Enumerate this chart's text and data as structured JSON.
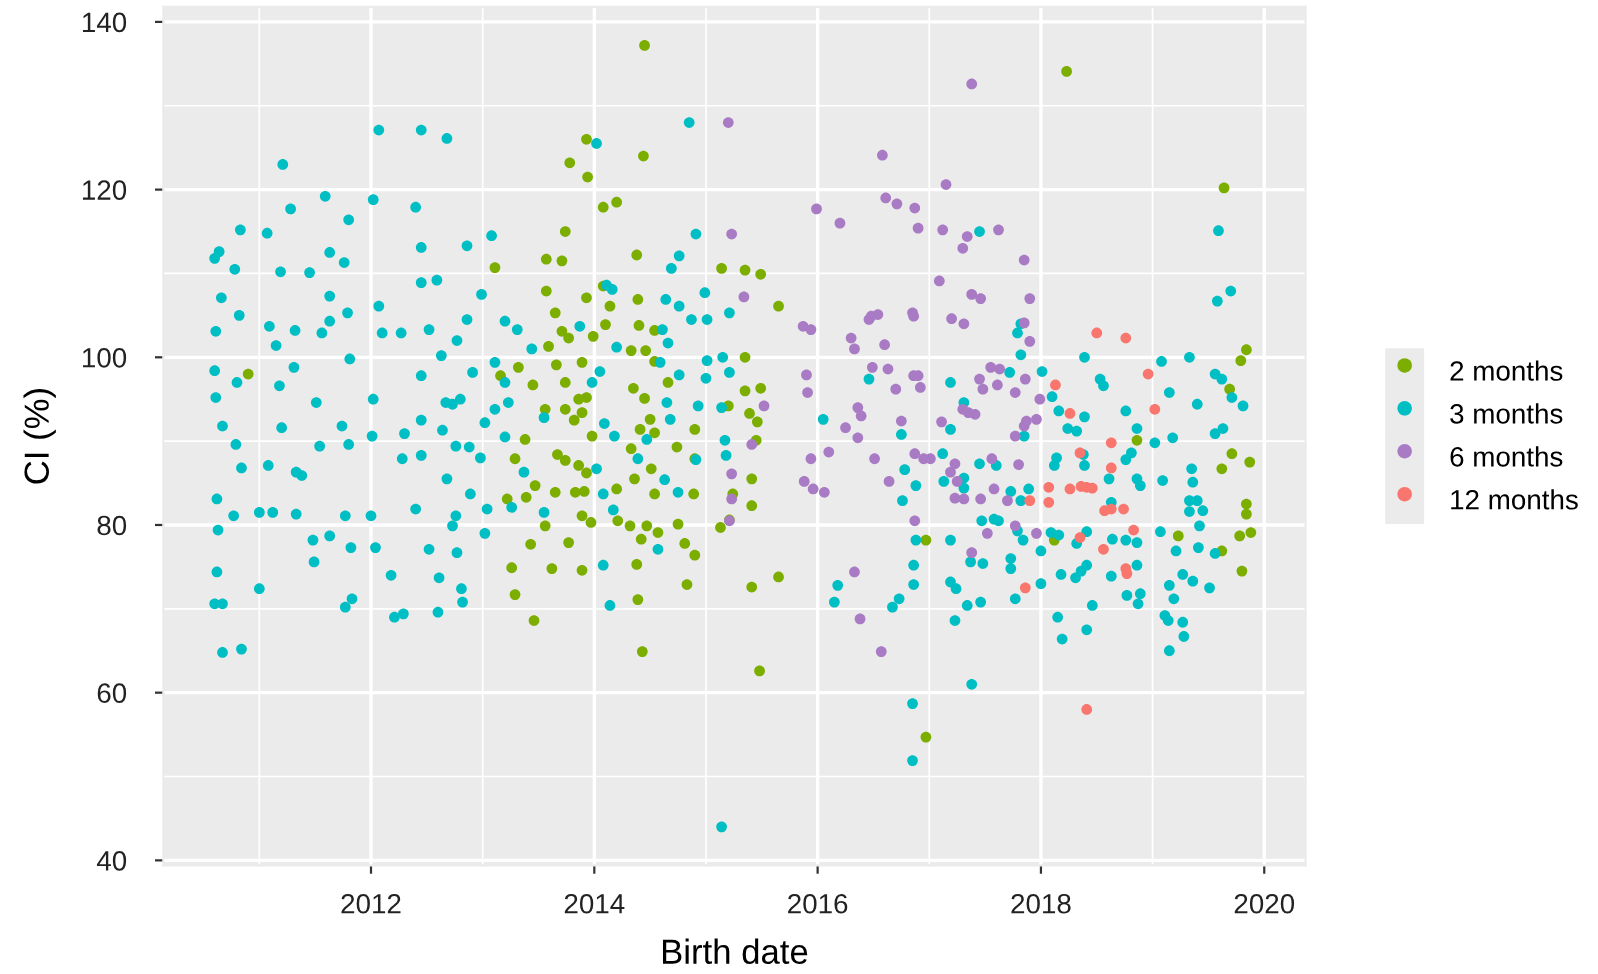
{
  "chart_data": {
    "type": "scatter",
    "xlabel": "Birth date",
    "ylabel": "CI (%)",
    "xlim": [
      2010.14,
      2020.37
    ],
    "xticks": [
      2012,
      2014,
      2016,
      2018,
      2020
    ],
    "ylim": [
      39.4,
      141.8
    ],
    "yticks": [
      40,
      60,
      80,
      100,
      120,
      140
    ],
    "grid": true,
    "legend": "right",
    "marker": "circle",
    "series": [
      {
        "name": "2 months",
        "color": "#7cae00",
        "x": [
          2010.9,
          2014.45,
          2013.93,
          2014.44,
          2013.78,
          2013.94,
          2014.08,
          2014.2,
          2013.74,
          2013.57,
          2013.71,
          2013.11,
          2014.38,
          2015.14,
          2015.35,
          2015.49,
          2015.65,
          2013.57,
          2014.08,
          2013.93,
          2013.65,
          2014.39,
          2014.14,
          2013.71,
          2013.77,
          2013.59,
          2013.99,
          2014.1,
          2014.4,
          2014.54,
          2013.32,
          2013.16,
          2013.45,
          2013.66,
          2013.89,
          2013.74,
          2014.33,
          2014.46,
          2014.54,
          2014.35,
          2014.45,
          2014.66,
          2015.35,
          2015.35,
          2015.49,
          2015.39,
          2015.2,
          2013.56,
          2013.74,
          2013.86,
          2013.93,
          2013.98,
          2013.82,
          2013.89,
          2013.38,
          2013.67,
          2013.74,
          2013.86,
          2013.93,
          2013.83,
          2013.91,
          2013.29,
          2013.22,
          2013.39,
          2013.47,
          2013.56,
          2013.65,
          2013.89,
          2013.97,
          2014.2,
          2014.21,
          2014.33,
          2014.41,
          2014.5,
          2014.54,
          2014.36,
          2014.51,
          2014.54,
          2014.47,
          2014.32,
          2014.75,
          2014.74,
          2014.9,
          2014.9,
          2014.89,
          2014.57,
          2014.42,
          2013.26,
          2013.43,
          2013.29,
          2013.46,
          2013.62,
          2013.89,
          2013.77,
          2014.38,
          2014.39,
          2014.81,
          2014.9,
          2014.83,
          2015.13,
          2015.21,
          2015.24,
          2015.41,
          2015.41,
          2015.45,
          2015.46,
          2015.41,
          2015.65,
          2014.43,
          2015.48,
          2018.23,
          2019.64,
          2019.84,
          2019.79,
          2019.69,
          2019.71,
          2019.87,
          2019.62,
          2019.84,
          2019.84,
          2019.78,
          2019.88,
          2019.62,
          2019.8,
          2018.86,
          2019.23,
          2016.97,
          2016.97,
          2018.12
        ],
        "values": [
          98.0,
          137.2,
          126.0,
          124.0,
          123.2,
          121.5,
          117.9,
          118.5,
          115.0,
          111.7,
          111.5,
          110.7,
          112.2,
          110.6,
          110.4,
          109.9,
          106.1,
          107.9,
          108.5,
          107.1,
          105.3,
          106.9,
          106.1,
          103.1,
          102.3,
          101.3,
          102.5,
          103.9,
          103.8,
          103.2,
          98.8,
          97.8,
          96.7,
          99.1,
          99.4,
          97.0,
          100.8,
          100.8,
          99.5,
          96.3,
          95.1,
          97.0,
          100.0,
          96.0,
          96.3,
          93.3,
          94.2,
          93.8,
          93.8,
          95.0,
          95.2,
          90.6,
          92.5,
          93.4,
          90.2,
          88.4,
          87.7,
          87.1,
          86.2,
          83.9,
          84.0,
          87.9,
          83.1,
          83.3,
          84.7,
          79.9,
          83.9,
          81.1,
          80.3,
          84.3,
          80.5,
          89.1,
          91.4,
          92.6,
          91.0,
          85.5,
          86.7,
          83.7,
          79.9,
          79.9,
          80.1,
          89.3,
          91.4,
          87.9,
          83.7,
          79.1,
          78.3,
          74.9,
          77.7,
          71.7,
          68.6,
          74.8,
          74.6,
          77.9,
          75.3,
          71.1,
          77.8,
          76.4,
          72.9,
          79.7,
          80.6,
          83.7,
          85.5,
          82.3,
          90.1,
          92.3,
          72.6,
          73.8,
          64.9,
          62.6,
          134.1,
          120.2,
          100.9,
          99.6,
          96.2,
          88.5,
          87.5,
          86.7,
          82.5,
          81.3,
          78.7,
          79.1,
          76.9,
          74.5,
          90.1,
          78.7,
          78.2,
          54.7,
          78.2
        ]
      },
      {
        "name": "3 months",
        "color": "#00bfc4",
        "x": [
          2010.6,
          2010.64,
          2010.61,
          2010.66,
          2010.6,
          2010.61,
          2010.67,
          2010.62,
          2010.63,
          2010.62,
          2010.6,
          2010.67,
          2010.67,
          2010.84,
          2010.78,
          2010.83,
          2010.8,
          2010.82,
          2010.79,
          2010.84,
          2010.77,
          2011.0,
          2011.07,
          2011.21,
          2011.28,
          2011.09,
          2011.15,
          2011.19,
          2011.18,
          2011.0,
          2011.12,
          2011.08,
          2011.2,
          2011.32,
          2011.31,
          2011.33,
          2011.38,
          2011.33,
          2011.48,
          2011.49,
          2011.45,
          2011.59,
          2011.63,
          2011.63,
          2011.56,
          2011.63,
          2011.51,
          2011.54,
          2011.63,
          2011.76,
          2011.8,
          2011.79,
          2011.81,
          2011.74,
          2011.8,
          2011.77,
          2011.77,
          2011.83,
          2011.82,
          2012.02,
          2012.07,
          2012.07,
          2012.1,
          2012.02,
          2012.01,
          2012.0,
          2012.04,
          2012.18,
          2012.21,
          2012.29,
          2012.3,
          2012.28,
          2012.27,
          2012.4,
          2012.45,
          2012.45,
          2012.45,
          2012.52,
          2012.45,
          2012.45,
          2012.45,
          2012.4,
          2012.52,
          2012.6,
          2012.61,
          2012.68,
          2012.59,
          2012.63,
          2012.67,
          2012.64,
          2012.68,
          2012.76,
          2012.81,
          2012.82,
          2012.86,
          2012.86,
          2012.77,
          2012.8,
          2012.76,
          2012.89,
          2013.08,
          2012.99,
          2013.2,
          2013.31,
          2013.11,
          2013.44,
          2013.2,
          2012.91,
          2012.73,
          2013.11,
          2013.23,
          2013.02,
          2012.88,
          2013.2,
          2013.37,
          2012.98,
          2013.04,
          2013.26,
          2012.73,
          2013.02,
          2012.77,
          2013.55,
          2013.55,
          2013.98,
          2013.87,
          2014.05,
          2014.02,
          2014.09,
          2014.08,
          2014.17,
          2014.18,
          2014.11,
          2014.16,
          2014.2,
          2014.14,
          2014.08,
          2014.02,
          2014.39,
          2014.47,
          2014.59,
          2014.64,
          2014.66,
          2014.61,
          2014.76,
          2014.76,
          2014.69,
          2014.91,
          2014.85,
          2014.68,
          2014.63,
          2014.57,
          2014.65,
          2014.76,
          2014.87,
          2014.99,
          2015.01,
          2015.01,
          2015.0,
          2014.93,
          2015.14,
          2015.17,
          2015.18,
          2015.15,
          2015.21,
          2015.21,
          2014.75,
          2014.91,
          2015.14,
          2016.05,
          2016.18,
          2016.15,
          2017.45,
          2019.59,
          2019.7,
          2019.58,
          2017.82,
          2017.79,
          2017.82,
          2017.72,
          2018.01,
          2018.39,
          2019.08,
          2019.33,
          2019.56,
          2019.62,
          2019.81,
          2019.71,
          2017.19,
          2016.46,
          2017.31,
          2019.15,
          2019.4,
          2018.76,
          2018.53,
          2018.56,
          2018.1,
          2018.16,
          2018.24,
          2018.32,
          2018.39,
          2018.86,
          2019.18,
          2019.02,
          2019.63,
          2016.75,
          2017.19,
          2017.12,
          2017.45,
          2017.85,
          2016.78,
          2016.88,
          2016.76,
          2017.13,
          2017.31,
          2017.31,
          2017.6,
          2017.73,
          2017.82,
          2017.89,
          2018.12,
          2018.14,
          2018.38,
          2018.39,
          2018.61,
          2018.63,
          2018.76,
          2018.81,
          2018.86,
          2018.89,
          2019.09,
          2019.35,
          2019.36,
          2019.33,
          2019.4,
          2019.45,
          2019.33,
          2019.42,
          2019.56,
          2017.47,
          2017.58,
          2017.62,
          2017.79,
          2017.84,
          2018.0,
          2018.09,
          2018.16,
          2018.32,
          2018.41,
          2018.64,
          2018.76,
          2018.86,
          2019.07,
          2019.21,
          2019.41,
          2019.56,
          2017.19,
          2016.88,
          2016.86,
          2016.86,
          2017.19,
          2017.24,
          2017.37,
          2017.48,
          2017.73,
          2017.77,
          2017.73,
          2018.0,
          2018.18,
          2018.31,
          2018.36,
          2018.41,
          2018.46,
          2018.63,
          2018.86,
          2018.77,
          2018.89,
          2018.87,
          2019.15,
          2019.19,
          2019.27,
          2019.36,
          2019.51,
          2019.11,
          2019.14,
          2019.27,
          2019.15,
          2019.28,
          2018.15,
          2018.41,
          2018.19,
          2016.73,
          2016.67,
          2017.23,
          2017.34,
          2017.46,
          2017.38,
          2016.85,
          2016.85
        ],
        "values": [
          111.8,
          112.6,
          103.1,
          107.1,
          98.4,
          95.2,
          91.8,
          83.1,
          79.4,
          74.4,
          70.6,
          70.6,
          64.8,
          65.2,
          110.5,
          115.2,
          97.0,
          105.0,
          89.6,
          86.8,
          81.1,
          72.4,
          114.8,
          123.0,
          117.7,
          103.7,
          101.4,
          110.2,
          96.6,
          81.5,
          81.5,
          87.1,
          91.6,
          103.2,
          98.8,
          86.3,
          85.9,
          81.3,
          78.2,
          75.6,
          110.1,
          119.2,
          112.5,
          107.3,
          102.9,
          104.3,
          94.6,
          89.4,
          78.7,
          111.3,
          116.4,
          105.3,
          99.8,
          91.8,
          89.6,
          81.1,
          70.2,
          71.2,
          77.3,
          118.8,
          127.1,
          106.1,
          102.9,
          95.0,
          90.6,
          81.1,
          77.3,
          74.0,
          69.0,
          69.4,
          90.9,
          87.9,
          102.9,
          117.9,
          127.1,
          113.1,
          108.9,
          103.3,
          97.8,
          92.5,
          88.3,
          81.9,
          77.1,
          69.6,
          73.7,
          126.1,
          109.2,
          100.2,
          94.6,
          91.3,
          85.5,
          81.1,
          72.4,
          70.8,
          113.3,
          104.5,
          102.0,
          95.0,
          89.4,
          83.7,
          114.5,
          107.5,
          104.3,
          103.3,
          99.4,
          101.0,
          97.0,
          98.2,
          94.4,
          93.8,
          94.6,
          92.2,
          89.3,
          90.5,
          86.3,
          88.0,
          81.9,
          82.1,
          79.9,
          79.0,
          76.7,
          92.8,
          81.5,
          97.0,
          103.7,
          98.3,
          86.7,
          92.1,
          83.7,
          81.8,
          90.6,
          108.6,
          108.1,
          101.2,
          70.4,
          75.2,
          125.5,
          87.9,
          90.2,
          99.4,
          106.9,
          101.7,
          103.3,
          106.1,
          112.1,
          110.6,
          114.7,
          128.0,
          92.6,
          85.4,
          77.1,
          94.6,
          97.9,
          104.5,
          107.7,
          104.5,
          99.6,
          97.5,
          94.2,
          94.0,
          90.1,
          88.3,
          100.0,
          98.2,
          105.3,
          83.9,
          87.8,
          44.0,
          92.6,
          72.8,
          70.8,
          115.0,
          115.1,
          107.9,
          106.7,
          104.0,
          102.9,
          100.3,
          98.2,
          98.3,
          100.0,
          99.5,
          100.0,
          98.0,
          97.4,
          94.2,
          95.2,
          97.0,
          97.4,
          94.6,
          95.8,
          94.4,
          93.6,
          97.4,
          96.6,
          95.3,
          93.6,
          91.5,
          91.2,
          92.9,
          91.5,
          90.4,
          89.8,
          91.5,
          90.8,
          91.4,
          88.5,
          87.3,
          90.6,
          86.6,
          84.7,
          82.9,
          85.2,
          85.6,
          84.4,
          87.1,
          84.0,
          82.9,
          84.3,
          87.1,
          88.0,
          88.4,
          87.1,
          85.5,
          82.7,
          87.8,
          88.6,
          85.5,
          84.7,
          85.3,
          86.7,
          85.1,
          82.9,
          82.9,
          81.7,
          81.6,
          79.9,
          90.9,
          80.5,
          80.7,
          80.5,
          79.3,
          78.2,
          76.9,
          79.1,
          78.8,
          77.8,
          79.2,
          78.3,
          78.2,
          77.9,
          79.2,
          76.9,
          77.3,
          76.6,
          78.2,
          78.2,
          75.2,
          72.9,
          73.2,
          72.4,
          75.6,
          75.4,
          74.8,
          71.2,
          76.0,
          73.0,
          74.1,
          73.7,
          74.5,
          75.2,
          70.4,
          73.9,
          75.2,
          71.6,
          71.8,
          70.6,
          72.8,
          71.2,
          74.1,
          73.3,
          72.5,
          69.2,
          68.6,
          68.4,
          65.0,
          66.7,
          69.0,
          67.5,
          66.4,
          71.2,
          70.2,
          68.6,
          70.4,
          70.8,
          61.0,
          58.7,
          51.9
        ]
      },
      {
        "name": "6 months",
        "color": "#a97bc4",
        "x": [
          2015.2,
          2015.23,
          2015.99,
          2016.2,
          2015.34,
          2015.87,
          2015.94,
          2016.3,
          2016.33,
          2016.46,
          2016.49,
          2015.9,
          2015.91,
          2015.52,
          2016.36,
          2016.25,
          2016.39,
          2016.36,
          2015.41,
          2015.23,
          2015.23,
          2015.21,
          2015.94,
          2015.88,
          2015.96,
          2016.06,
          2016.1,
          2016.51,
          2016.33,
          2016.38,
          2016.58,
          2017.38,
          2017.15,
          2016.61,
          2016.71,
          2016.87,
          2016.9,
          2017.12,
          2017.34,
          2017.3,
          2017.62,
          2017.85,
          2017.09,
          2017.38,
          2017.46,
          2017.9,
          2016.48,
          2016.54,
          2016.85,
          2016.86,
          2017.2,
          2017.31,
          2017.85,
          2017.9,
          2016.6,
          2016.63,
          2016.86,
          2016.9,
          2016.7,
          2016.92,
          2017.45,
          2017.48,
          2017.55,
          2017.61,
          2017.63,
          2017.86,
          2017.77,
          2017.3,
          2017.35,
          2017.41,
          2017.11,
          2016.75,
          2017.96,
          2017.99,
          2017.87,
          2017.77,
          2017.85,
          2016.95,
          2017.01,
          2016.87,
          2017.23,
          2017.19,
          2017.56,
          2017.8,
          2016.64,
          2017.25,
          2017.46,
          2017.58,
          2017.7,
          2017.23,
          2017.31,
          2016.87,
          2017.52,
          2017.77,
          2017.96,
          2017.38,
          2016.57
        ],
        "values": [
          128.0,
          114.7,
          117.7,
          116.0,
          107.2,
          103.7,
          103.3,
          102.3,
          101.0,
          104.5,
          98.8,
          97.9,
          95.8,
          94.2,
          94.0,
          91.6,
          93.0,
          90.4,
          89.6,
          86.1,
          83.1,
          80.5,
          87.9,
          85.2,
          84.3,
          83.9,
          88.7,
          87.9,
          74.4,
          68.8,
          124.1,
          132.6,
          120.6,
          119.0,
          118.3,
          117.8,
          115.4,
          115.2,
          114.4,
          113.0,
          115.2,
          111.6,
          109.1,
          107.5,
          107.0,
          107.0,
          104.9,
          105.1,
          105.3,
          104.9,
          104.6,
          104.0,
          104.1,
          101.9,
          101.5,
          98.6,
          97.8,
          97.8,
          96.2,
          96.4,
          97.4,
          96.2,
          98.8,
          96.7,
          98.6,
          97.4,
          95.8,
          93.8,
          93.4,
          93.2,
          92.3,
          92.4,
          92.6,
          95.0,
          92.4,
          90.6,
          91.8,
          87.9,
          87.9,
          88.5,
          87.3,
          86.3,
          87.9,
          87.2,
          85.2,
          85.2,
          83.1,
          84.3,
          82.9,
          83.2,
          83.1,
          80.5,
          79.0,
          79.9,
          79.0,
          76.7,
          64.9
        ]
      },
      {
        "name": "12 months",
        "color": "#f8766d",
        "x": [
          2018.5,
          2018.76,
          2018.96,
          2019.02,
          2018.13,
          2018.26,
          2017.9,
          2018.07,
          2018.07,
          2018.26,
          2018.35,
          2018.36,
          2018.41,
          2018.46,
          2018.63,
          2018.63,
          2018.57,
          2018.63,
          2018.74,
          2018.35,
          2018.56,
          2018.83,
          2018.76,
          2018.77,
          2017.86,
          2018.41
        ],
        "values": [
          102.9,
          102.3,
          98.0,
          93.8,
          96.7,
          93.3,
          82.9,
          84.5,
          82.7,
          84.3,
          88.6,
          84.6,
          84.5,
          84.4,
          89.8,
          86.8,
          81.7,
          81.9,
          81.9,
          78.5,
          77.1,
          79.4,
          74.8,
          74.2,
          72.5,
          58.0
        ]
      }
    ]
  }
}
